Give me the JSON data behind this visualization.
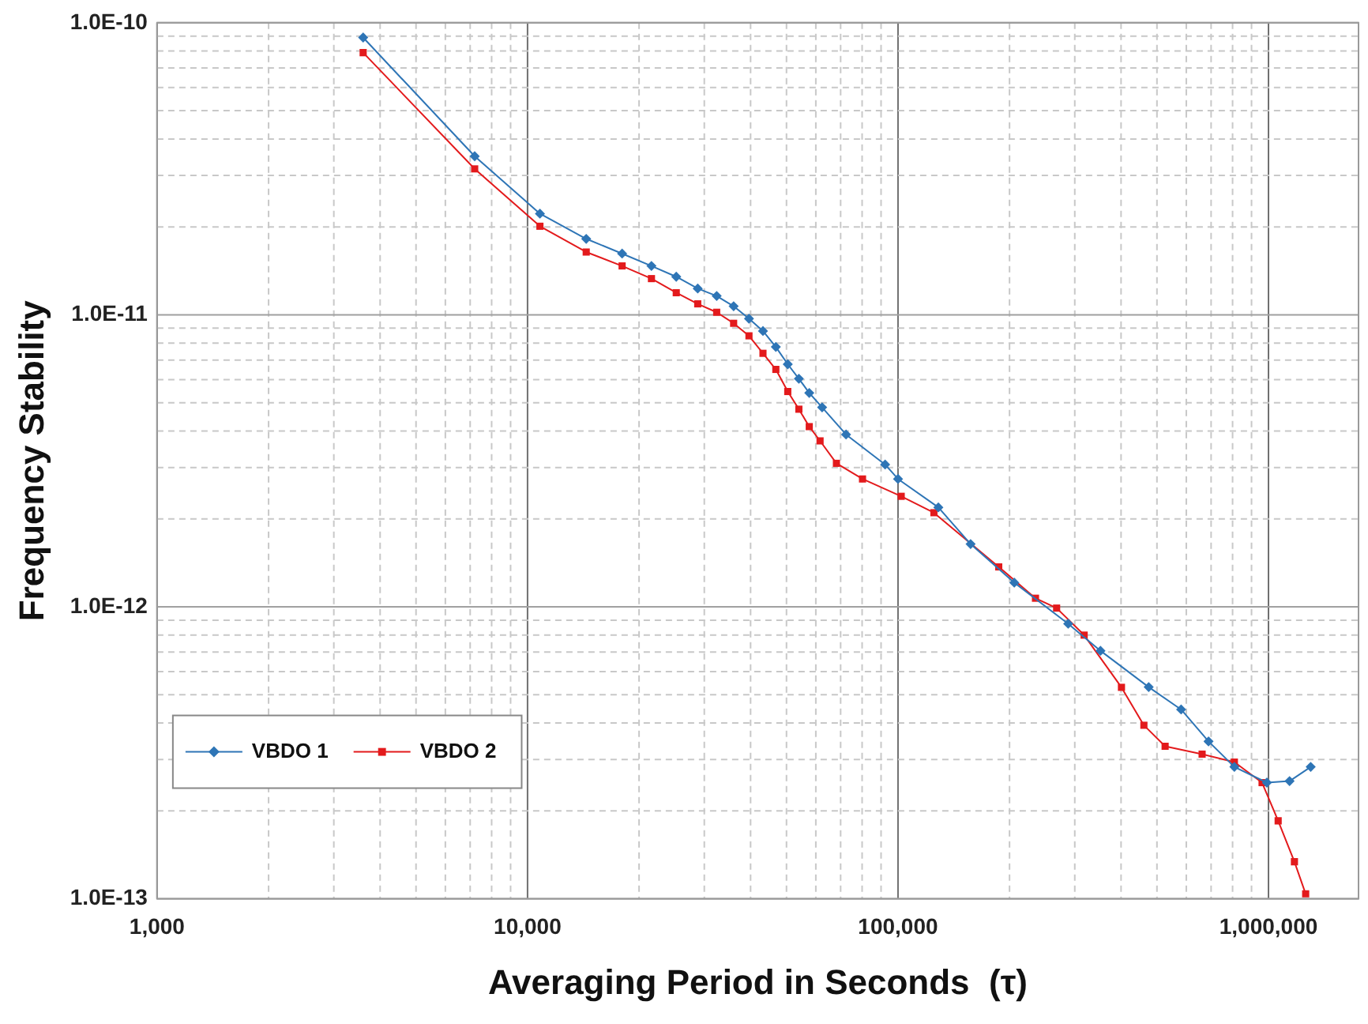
{
  "chart_data": {
    "type": "line",
    "xlabel": "Averaging Period in Seconds  (τ)",
    "ylabel": "Frequency Stability",
    "log": "xy",
    "grid": true,
    "legend": "bottom left",
    "xlim": [
      1000,
      1750000
    ],
    "ylim": [
      1e-13,
      1e-10
    ],
    "xticks": [
      {
        "value": 1000,
        "label": "1,000"
      },
      {
        "value": 2000,
        "label": null
      },
      {
        "value": 3000,
        "label": null
      },
      {
        "value": 4000,
        "label": null
      },
      {
        "value": 5000,
        "label": null
      },
      {
        "value": 6000,
        "label": null
      },
      {
        "value": 7000,
        "label": null
      },
      {
        "value": 8000,
        "label": null
      },
      {
        "value": 9000,
        "label": null
      },
      {
        "value": 10000,
        "label": "10,000"
      },
      {
        "value": 20000,
        "label": null
      },
      {
        "value": 30000,
        "label": null
      },
      {
        "value": 40000,
        "label": null
      },
      {
        "value": 50000,
        "label": null
      },
      {
        "value": 60000,
        "label": null
      },
      {
        "value": 70000,
        "label": null
      },
      {
        "value": 80000,
        "label": null
      },
      {
        "value": 90000,
        "label": null
      },
      {
        "value": 100000,
        "label": "100,000"
      },
      {
        "value": 200000,
        "label": null
      },
      {
        "value": 300000,
        "label": null
      },
      {
        "value": 400000,
        "label": null
      },
      {
        "value": 500000,
        "label": null
      },
      {
        "value": 600000,
        "label": null
      },
      {
        "value": 700000,
        "label": null
      },
      {
        "value": 800000,
        "label": null
      },
      {
        "value": 900000,
        "label": null
      },
      {
        "value": 1000000,
        "label": "1,000,000"
      }
    ],
    "yticks": [
      {
        "value": 1e-13,
        "label": "1.0E-13"
      },
      {
        "value": 2e-13,
        "label": null
      },
      {
        "value": 3e-13,
        "label": null
      },
      {
        "value": 4e-13,
        "label": null
      },
      {
        "value": 5e-13,
        "label": null
      },
      {
        "value": 6e-13,
        "label": null
      },
      {
        "value": 7e-13,
        "label": null
      },
      {
        "value": 8e-13,
        "label": null
      },
      {
        "value": 9e-13,
        "label": null
      },
      {
        "value": 1e-12,
        "label": "1.0E-12"
      },
      {
        "value": 2e-12,
        "label": null
      },
      {
        "value": 3e-12,
        "label": null
      },
      {
        "value": 4e-12,
        "label": null
      },
      {
        "value": 5e-12,
        "label": null
      },
      {
        "value": 6e-12,
        "label": null
      },
      {
        "value": 7e-12,
        "label": null
      },
      {
        "value": 8e-12,
        "label": null
      },
      {
        "value": 9e-12,
        "label": null
      },
      {
        "value": 1e-11,
        "label": "1.0E-11"
      },
      {
        "value": 2e-11,
        "label": null
      },
      {
        "value": 3e-11,
        "label": null
      },
      {
        "value": 4e-11,
        "label": null
      },
      {
        "value": 5e-11,
        "label": null
      },
      {
        "value": 6e-11,
        "label": null
      },
      {
        "value": 7e-11,
        "label": null
      },
      {
        "value": 8e-11,
        "label": null
      },
      {
        "value": 9e-11,
        "label": null
      },
      {
        "value": 1e-10,
        "label": "1.0E-10"
      }
    ],
    "series": [
      {
        "name": "VBDO 1",
        "color": "#2e75b6",
        "marker": "diamond",
        "x": [
          3600,
          7200,
          10800,
          14400,
          18000,
          21600,
          25200,
          28800,
          32400,
          36000,
          39600,
          43200,
          46800,
          50400,
          54000,
          57600,
          62400,
          72400,
          92300,
          100000,
          128500,
          157000,
          206000,
          288000,
          352000,
          475000,
          581000,
          689000,
          809000,
          990000,
          1140000,
          1300000
        ],
        "values": [
          8.9e-11,
          3.49e-11,
          2.22e-11,
          1.82e-11,
          1.62e-11,
          1.47e-11,
          1.35e-11,
          1.23e-11,
          1.16e-11,
          1.07e-11,
          9.7e-12,
          8.8e-12,
          7.76e-12,
          6.77e-12,
          6.04e-12,
          5.4e-12,
          4.82e-12,
          3.89e-12,
          3.07e-12,
          2.74e-12,
          2.19e-12,
          1.64e-12,
          1.21e-12,
          8.75e-13,
          7.07e-13,
          5.31e-13,
          4.45e-13,
          3.46e-13,
          2.83e-13,
          2.5e-13,
          2.53e-13,
          2.83e-13
        ]
      },
      {
        "name": "VBDO 2",
        "color": "#e31a1c",
        "marker": "square",
        "x": [
          3600,
          7200,
          10800,
          14400,
          18000,
          21600,
          25200,
          28800,
          32400,
          36000,
          39600,
          43200,
          46800,
          50400,
          54000,
          57600,
          61600,
          68200,
          80200,
          102000,
          125000,
          187000,
          235000,
          268000,
          318000,
          401000,
          461000,
          526000,
          662000,
          809000,
          961000,
          1062000,
          1175000,
          1260000
        ],
        "values": [
          7.9e-11,
          3.16e-11,
          2.01e-11,
          1.64e-11,
          1.47e-11,
          1.33e-11,
          1.19e-11,
          1.09e-11,
          1.02e-11,
          9.35e-12,
          8.47e-12,
          7.38e-12,
          6.5e-12,
          5.46e-12,
          4.75e-12,
          4.14e-12,
          3.7e-12,
          3.1e-12,
          2.74e-12,
          2.39e-12,
          2.1e-12,
          1.37e-12,
          1.07e-12,
          9.9e-13,
          8e-13,
          5.3e-13,
          3.93e-13,
          3.33e-13,
          3.13e-13,
          2.94e-13,
          2.5e-13,
          1.85e-13,
          1.34e-13,
          1.04e-13
        ]
      }
    ]
  }
}
